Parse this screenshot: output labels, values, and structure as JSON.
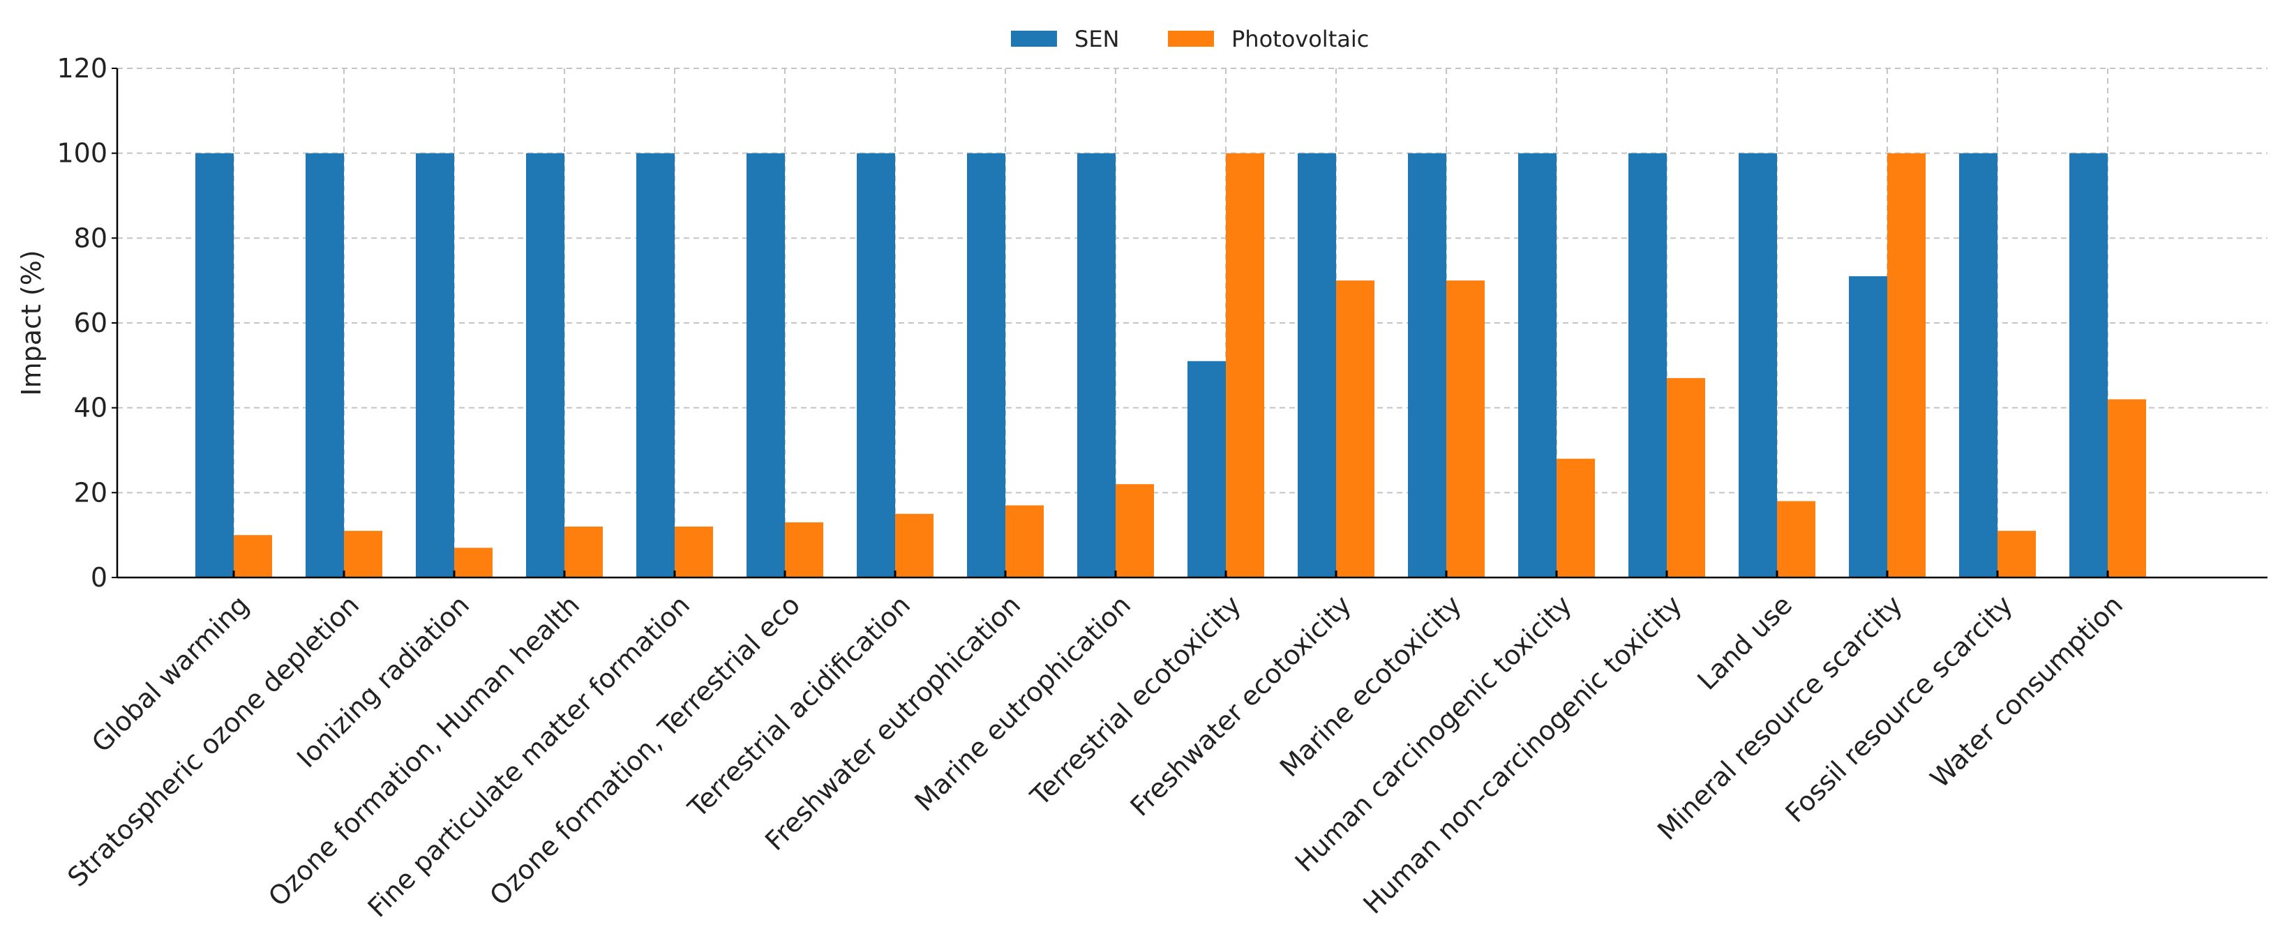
{
  "chart_data": {
    "type": "bar",
    "title": "",
    "xlabel": "",
    "ylabel": "Impact (%)",
    "ylim": [
      0,
      120
    ],
    "yticks": [
      0,
      20,
      40,
      60,
      80,
      100,
      120
    ],
    "grid": true,
    "legend_position": "top-center",
    "categories": [
      "Global warming",
      "Stratospheric ozone depletion",
      "Ionizing radiation",
      "Ozone formation, Human health",
      "Fine particulate matter formation",
      "Ozone formation, Terrestrial eco",
      "Terrestrial acidification",
      "Freshwater eutrophication",
      "Marine eutrophication",
      "Terrestrial ecotoxicity",
      "Freshwater ecotoxicity",
      "Marine ecotoxicity",
      "Human carcinogenic toxicity",
      "Human non-carcinogenic toxicity",
      "Land use",
      "Mineral resource scarcity",
      "Fossil resource scarcity",
      "Water consumption"
    ],
    "series": [
      {
        "name": "SEN",
        "color": "#1f77b4",
        "values": [
          100,
          100,
          100,
          100,
          100,
          100,
          100,
          100,
          100,
          51,
          100,
          100,
          100,
          100,
          100,
          71,
          100,
          100
        ]
      },
      {
        "name": "Photovoltaic",
        "color": "#ff7f0e",
        "values": [
          10,
          11,
          7,
          12,
          12,
          13,
          15,
          17,
          22,
          100,
          70,
          70,
          28,
          47,
          18,
          100,
          11,
          42
        ]
      }
    ]
  }
}
